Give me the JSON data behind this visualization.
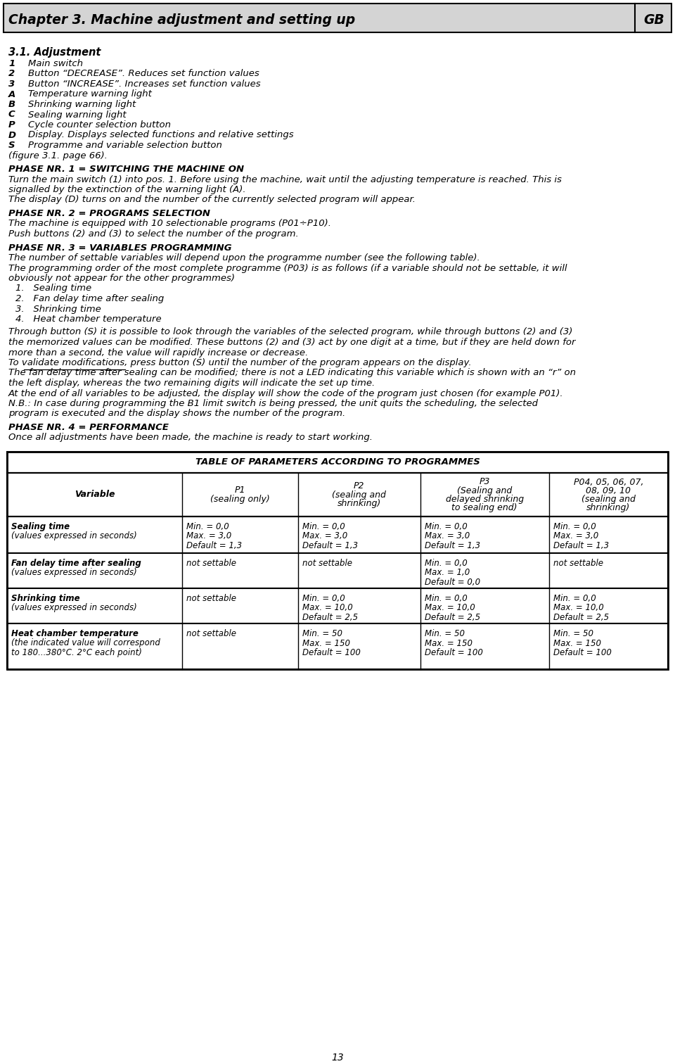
{
  "title_header": "Chapter 3. Machine adjustment and setting up",
  "title_gb": "GB",
  "bg_color": "#f0f0f0",
  "white": "#ffffff",
  "black": "#000000",
  "section_title": "3.1. Adjustment",
  "items": [
    [
      "1",
      "Main switch"
    ],
    [
      "2",
      "Button “DECREASE”. Reduces set function values"
    ],
    [
      "3",
      "Button “INCREASE”. Increases set function values"
    ],
    [
      "A",
      "Temperature warning light"
    ],
    [
      "B",
      "Shrinking warning light"
    ],
    [
      "C",
      "Sealing warning light"
    ],
    [
      "P",
      "Cycle counter selection button"
    ],
    [
      "D",
      "Display. Displays selected functions and relative settings"
    ],
    [
      "S",
      "Programme and variable selection button"
    ],
    [
      "fig",
      "(figure 3.1. page 66)."
    ]
  ],
  "phase1_title": "PHASE NR. 1 = SWITCHING THE MACHINE ON",
  "phase1_text": [
    "Turn the main switch (1) into pos. 1. Before using the machine, wait until the adjusting temperature is reached. This is",
    "signalled by the extinction of the warning light (A).",
    "The display (D) turns on and the number of the currently selected program will appear."
  ],
  "phase2_title": "PHASE NR. 2 = PROGRAMS SELECTION",
  "phase2_text": [
    "The machine is equipped with 10 selectionable programs (P01÷P10).",
    "Push buttons (2) and (3) to select the number of the program."
  ],
  "phase3_title": "PHASE NR. 3 = VARIABLES PROGRAMMING",
  "phase3_text1": [
    "The number of settable variables will depend upon the programme number (see the following table).",
    "The programming order of the most complete programme (P03) is as follows (if a variable should not be settable, it will",
    "obviously not appear for the other programmes)"
  ],
  "phase3_list": [
    "1.   Sealing time",
    "2.   Fan delay time after sealing",
    "3.   Shrinking time",
    "4.   Heat chamber temperature"
  ],
  "phase3_text2": [
    "Through button (S) it is possible to look through the variables of the selected program, while through buttons (2) and (3)",
    "the memorized values can be modified. These buttons (2) and (3) act by one digit at a time, but if they are held down for",
    "more than a second, the value will rapidly increase or decrease.",
    "To validate modifications, press button (S) until the number of the program appears on the display.",
    "The fan delay time after sealing can be modified; there is not a LED indicating this variable which is shown with an “r” on",
    "the left display, whereas the two remaining digits will indicate the set up time.",
    "At the end of all variables to be adjusted, the display will show the code of the program just chosen (for example P01).",
    "N.B.: In case during programming the B1 limit switch is being pressed, the unit quits the scheduling, the selected",
    "program is executed and the display shows the number of the program."
  ],
  "phase4_title": "PHASE NR. 4 = PERFORMANCE",
  "phase4_text": [
    "Once all adjustments have been made, the machine is ready to start working."
  ],
  "table_title": "TABLE OF PARAMETERS ACCORDING TO PROGRAMMES",
  "table_col_headers": [
    "Variable",
    "P1\n(sealing only)",
    "P2\n(sealing and\nshrinking)",
    "P3\n(Sealing and\ndelayed shrinking\nto sealing end)",
    "P04, 05, 06, 07,\n08, 09, 10\n(sealing and\nshrinking)"
  ],
  "table_rows": [
    {
      "var": "Sealing time\n(values expressed in seconds)",
      "p1": "Min. = 0,0\nMax. = 3,0\nDefault = 1,3",
      "p2": "Min. = 0,0\nMax. = 3,0\nDefault = 1,3",
      "p3": "Min. = 0,0\nMax. = 3,0\nDefault = 1,3",
      "p4": "Min. = 0,0\nMax. = 3,0\nDefault = 1,3"
    },
    {
      "var": "Fan delay time after sealing\n(values expressed in seconds)",
      "p1": "not settable",
      "p2": "not settable",
      "p3": "Min. = 0,0\nMax. = 1,0\nDefault = 0,0",
      "p4": "not settable"
    },
    {
      "var": "Shrinking time\n(values expressed in seconds)",
      "p1": "not settable",
      "p2": "Min. = 0,0\nMax. = 10,0\nDefault = 2,5",
      "p3": "Min. = 0,0\nMax. = 10,0\nDefault = 2,5",
      "p4": "Min. = 0,0\nMax. = 10,0\nDefault = 2,5"
    },
    {
      "var": "Heat chamber temperature\n(the indicated value will correspond\nto 180...380°C. 2°C each point)",
      "p1": "not settable",
      "p2": "Min. = 50\nMax. = 150\nDefault = 100",
      "p3": "Min. = 50\nMax. = 150\nDefault = 100",
      "p4": "Min. = 50\nMax. = 150\nDefault = 100"
    }
  ],
  "page_number": "13"
}
